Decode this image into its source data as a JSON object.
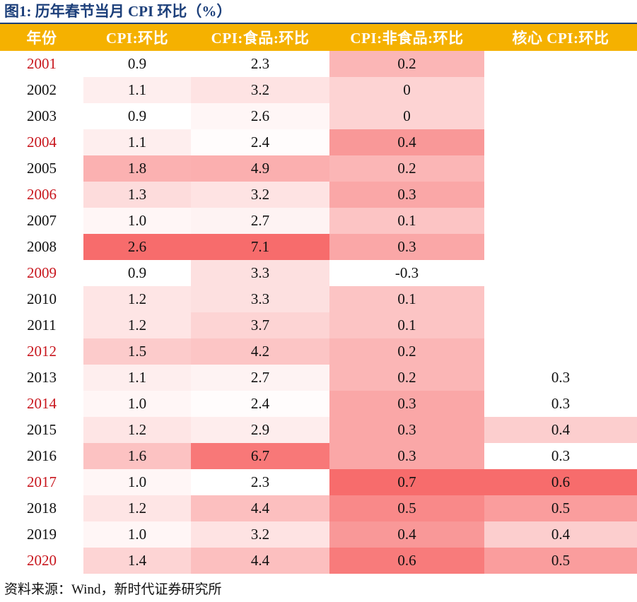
{
  "title": "图1:  历年春节当月 CPI 环比（%）",
  "source": "资料来源：Wind，新时代证券研究所",
  "colors": {
    "header_bg": "#f5b100",
    "header_text": "#ffffff",
    "title_color": "#1c3f7a",
    "year_red": "#c8161d",
    "year_black": "#111111",
    "heat_low": "#ffffff",
    "heat_high": "#f76c6c"
  },
  "chart_data": {
    "type": "table",
    "title": "图1:  历年春节当月 CPI 环比（%）",
    "columns": [
      "年份",
      "CPI:环比",
      "CPI:食品:环比",
      "CPI:非食品:环比",
      "核心 CPI:环比"
    ],
    "rows": [
      {
        "year": "2001",
        "year_color": "red",
        "values": [
          "0.9",
          "2.3",
          "0.2",
          ""
        ]
      },
      {
        "year": "2002",
        "year_color": "black",
        "values": [
          "1.1",
          "3.2",
          "0",
          ""
        ]
      },
      {
        "year": "2003",
        "year_color": "black",
        "values": [
          "0.9",
          "2.6",
          "0",
          ""
        ]
      },
      {
        "year": "2004",
        "year_color": "red",
        "values": [
          "1.1",
          "2.4",
          "0.4",
          ""
        ]
      },
      {
        "year": "2005",
        "year_color": "black",
        "values": [
          "1.8",
          "4.9",
          "0.2",
          ""
        ]
      },
      {
        "year": "2006",
        "year_color": "red",
        "values": [
          "1.3",
          "3.2",
          "0.3",
          ""
        ]
      },
      {
        "year": "2007",
        "year_color": "black",
        "values": [
          "1.0",
          "2.7",
          "0.1",
          ""
        ]
      },
      {
        "year": "2008",
        "year_color": "black",
        "values": [
          "2.6",
          "7.1",
          "0.3",
          ""
        ]
      },
      {
        "year": "2009",
        "year_color": "red",
        "values": [
          "0.9",
          "3.3",
          "-0.3",
          ""
        ]
      },
      {
        "year": "2010",
        "year_color": "black",
        "values": [
          "1.2",
          "3.3",
          "0.1",
          ""
        ]
      },
      {
        "year": "2011",
        "year_color": "black",
        "values": [
          "1.2",
          "3.7",
          "0.1",
          ""
        ]
      },
      {
        "year": "2012",
        "year_color": "red",
        "values": [
          "1.5",
          "4.2",
          "0.2",
          ""
        ]
      },
      {
        "year": "2013",
        "year_color": "black",
        "values": [
          "1.1",
          "2.7",
          "0.2",
          "0.3"
        ]
      },
      {
        "year": "2014",
        "year_color": "red",
        "values": [
          "1.0",
          "2.4",
          "0.3",
          "0.3"
        ]
      },
      {
        "year": "2015",
        "year_color": "black",
        "values": [
          "1.2",
          "2.9",
          "0.3",
          "0.4"
        ]
      },
      {
        "year": "2016",
        "year_color": "black",
        "values": [
          "1.6",
          "6.7",
          "0.3",
          "0.3"
        ]
      },
      {
        "year": "2017",
        "year_color": "red",
        "values": [
          "1.0",
          "2.3",
          "0.7",
          "0.6"
        ]
      },
      {
        "year": "2018",
        "year_color": "black",
        "values": [
          "1.2",
          "4.4",
          "0.5",
          "0.5"
        ]
      },
      {
        "year": "2019",
        "year_color": "black",
        "values": [
          "1.0",
          "3.2",
          "0.4",
          "0.4"
        ]
      },
      {
        "year": "2020",
        "year_color": "red",
        "values": [
          "1.4",
          "4.4",
          "0.6",
          "0.5"
        ]
      }
    ]
  }
}
